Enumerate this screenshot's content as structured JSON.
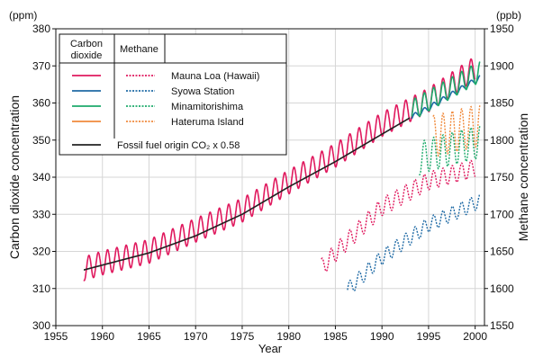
{
  "chart_data": {
    "type": "line",
    "xlabel": "Year",
    "ylabel_left": "Carbon dioxide concentration",
    "ylabel_right": "Methane concentration",
    "unit_left": "(ppm)",
    "unit_right": "(ppb)",
    "xlim": [
      1955,
      2001
    ],
    "ylim_left": [
      300,
      380
    ],
    "ylim_right": [
      1550,
      1950
    ],
    "x_ticks": [
      "1955",
      "1960",
      "1965",
      "1970",
      "1975",
      "1980",
      "1985",
      "1990",
      "1995",
      "2000"
    ],
    "y_left_ticks": [
      "300",
      "310",
      "320",
      "330",
      "340",
      "350",
      "360",
      "370",
      "380"
    ],
    "y_right_ticks": [
      "1550",
      "1600",
      "1650",
      "1700",
      "1750",
      "1800",
      "1850",
      "1900",
      "1950"
    ],
    "grid": true,
    "legend": {
      "placement": "top-left",
      "header_co2": "Carbon dioxide",
      "header_ch4": "Methane",
      "fossil_label": "Fossil fuel origin CO₂ x 0.58"
    },
    "series": [
      {
        "name": "Mauna Loa (Hawaii)",
        "color": "#e0195e",
        "co2": {
          "years": [
            1958,
            1960,
            1965,
            1970,
            1975,
            1980,
            1985,
            1990,
            1995,
            2000
          ],
          "values": [
            315.3,
            316.9,
            320.0,
            325.7,
            331.1,
            338.7,
            345.9,
            354.2,
            360.8,
            369.4
          ],
          "seasonal_amplitude": 3.2
        },
        "ch4": {
          "years": [
            1983.5,
            1985,
            1990,
            1995,
            2000
          ],
          "values": [
            1628,
            1648,
            1710,
            1745,
            1762
          ],
          "seasonal_amplitude": 12
        }
      },
      {
        "name": "Syowa Station",
        "color": "#1f6aa5",
        "co2": {
          "years": [
            1993.2,
            1995,
            2000.5
          ],
          "values": [
            356.2,
            358.6,
            366.8
          ],
          "seasonal_amplitude": 0.7
        },
        "ch4": {
          "years": [
            1986.3,
            1990,
            1995,
            2000.5
          ],
          "values": [
            1598,
            1642,
            1686,
            1718
          ],
          "seasonal_amplitude": 10
        }
      },
      {
        "name": "Minamitorishima",
        "color": "#1daa6b",
        "co2": {
          "years": [
            1993.2,
            1995,
            2000.5
          ],
          "values": [
            358.0,
            360.6,
            368.5
          ],
          "seasonal_amplitude": 2.8
        },
        "ch4": {
          "years": [
            1994,
            1995,
            2000.5
          ],
          "values": [
            1775,
            1780,
            1798
          ],
          "seasonal_amplitude": 22
        }
      },
      {
        "name": "Hateruma Island",
        "color": "#f08a3c",
        "co2": {
          "years": [],
          "values": [],
          "seasonal_amplitude": 0
        },
        "ch4": {
          "years": [
            1995.5,
            2000.5
          ],
          "values": [
            1805,
            1820
          ],
          "seasonal_amplitude": 28
        }
      },
      {
        "name": "Fossil fuel origin CO₂ x 0.58",
        "color": "#222222",
        "co2": {
          "years": [
            1958,
            1965,
            1970,
            1975,
            1980,
            1985,
            1990,
            1993
          ],
          "values": [
            315.0,
            319.6,
            324.2,
            330.0,
            337.4,
            344.2,
            351.6,
            356.0
          ],
          "seasonal_amplitude": 0
        }
      }
    ]
  }
}
